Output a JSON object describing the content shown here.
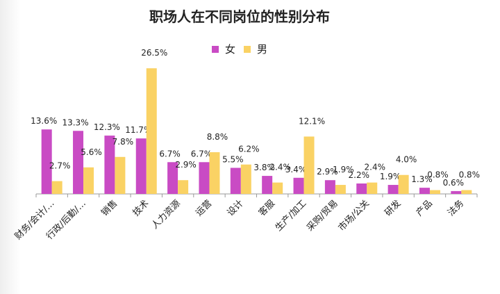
{
  "chart_data": {
    "type": "bar",
    "title": "职场人在不同岗位的性别分布",
    "categories": [
      "财务/会计/…",
      "行政/后勤/…",
      "销售",
      "技术",
      "人力资源",
      "运营",
      "设计",
      "客服",
      "生产/加工",
      "采购/贸易",
      "市场/公关",
      "研发",
      "产品",
      "法务"
    ],
    "series": [
      {
        "name": "女",
        "color": "#C94BC4",
        "values": [
          13.6,
          13.3,
          12.3,
          11.7,
          6.7,
          6.7,
          5.5,
          3.8,
          3.4,
          2.9,
          2.2,
          1.9,
          1.3,
          0.6
        ]
      },
      {
        "name": "男",
        "color": "#FAD264",
        "values": [
          2.7,
          5.6,
          7.8,
          26.5,
          2.9,
          8.8,
          6.2,
          2.4,
          12.1,
          1.9,
          2.4,
          4.0,
          0.8,
          0.8
        ]
      }
    ],
    "value_suffix": "%",
    "ylim": [
      0,
      28
    ],
    "grid": false,
    "legend_position": "top-center"
  }
}
